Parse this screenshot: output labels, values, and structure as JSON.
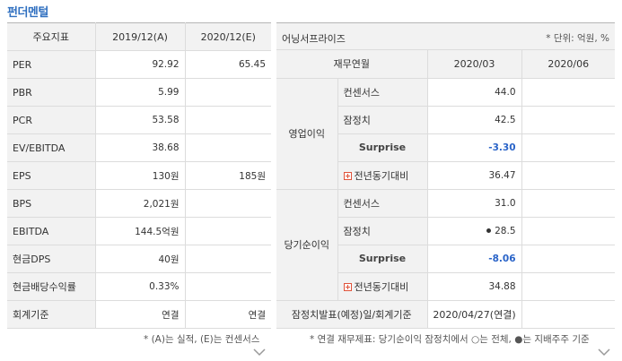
{
  "title": "펀더멘털",
  "left": {
    "headers": [
      "주요지표",
      "2019/12(A)",
      "2020/12(E)"
    ],
    "rows": [
      {
        "label": "PER",
        "a": "92.92",
        "e": "65.45"
      },
      {
        "label": "PBR",
        "a": "5.99",
        "e": ""
      },
      {
        "label": "PCR",
        "a": "53.58",
        "e": ""
      },
      {
        "label": "EV/EBITDA",
        "a": "38.68",
        "e": ""
      },
      {
        "label": "EPS",
        "a": "130원",
        "e": "185원"
      },
      {
        "label": "BPS",
        "a": "2,021원",
        "e": ""
      },
      {
        "label": "EBITDA",
        "a": "144.5억원",
        "e": ""
      },
      {
        "label": "현금DPS",
        "a": "40원",
        "e": ""
      },
      {
        "label": "현금배당수익률",
        "a": "0.33%",
        "e": ""
      },
      {
        "label": "회계기준",
        "a": "연결",
        "e": "연결"
      }
    ],
    "note": "* (A)는 실적, (E)는 컨센서스"
  },
  "right": {
    "title": "어닝서프라이즈",
    "unit": "* 단위: 억원, %",
    "headers": [
      "재무연월",
      "2020/03",
      "2020/06"
    ],
    "op_label": "영업이익",
    "op_rows": [
      {
        "label": "컨센서스",
        "v1": "44.0",
        "v2": ""
      },
      {
        "label": "잠정치",
        "v1": "42.5",
        "v2": ""
      },
      {
        "label": "Surprise",
        "v1": "-3.30",
        "v2": ""
      },
      {
        "label": "전년동기대비",
        "v1": "36.47",
        "v2": ""
      }
    ],
    "ni_label": "당기순이익",
    "ni_rows": [
      {
        "label": "컨센서스",
        "v1": "31.0",
        "v2": ""
      },
      {
        "label": "잠정치",
        "v1": "28.5",
        "v2": ""
      },
      {
        "label": "Surprise",
        "v1": "-8.06",
        "v2": ""
      },
      {
        "label": "전년동기대비",
        "v1": "34.88",
        "v2": ""
      }
    ],
    "footer_label": "잠정치발표(예정)일/회계기준",
    "footer_value": "2020/04/27(연결)",
    "note": "* 연결 재무제표: 당기순이익 잠정치에서 ○는 전체, ●는 지배주주 기준"
  }
}
